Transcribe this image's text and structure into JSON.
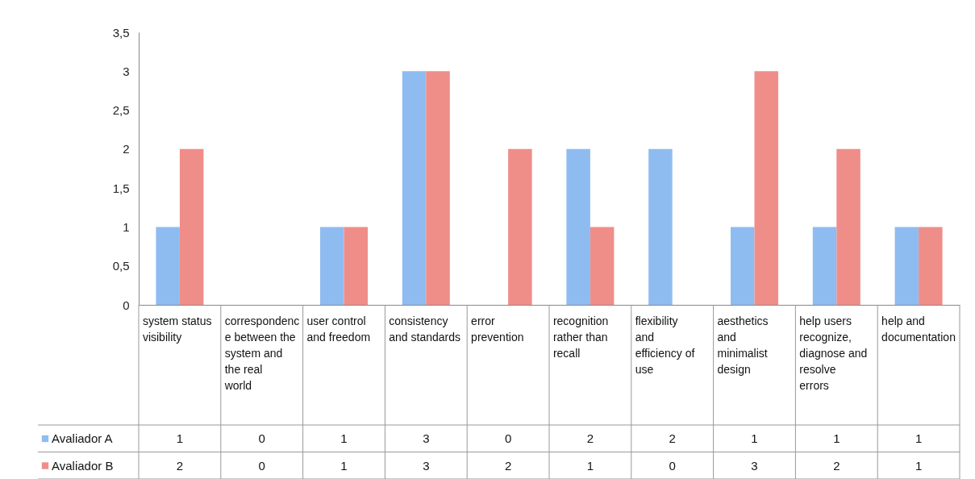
{
  "chart_data": {
    "type": "bar",
    "categories": [
      "system status visibility",
      "correspondence between the system and the real world",
      "user control and freedom",
      "consistency and standards",
      "error prevention",
      "recognition rather than recall",
      "flexibility and efficiency of use",
      "aesthetics and minimalist design",
      "help users recognize, diagnose and resolve errors",
      "help and documentation"
    ],
    "series": [
      {
        "name": "Avaliador A",
        "color": "#8fbcf0",
        "values": [
          1,
          0,
          1,
          3,
          0,
          2,
          2,
          1,
          1,
          1
        ]
      },
      {
        "name": "Avaliador B",
        "color": "#ef8e89",
        "values": [
          2,
          0,
          1,
          3,
          2,
          1,
          0,
          3,
          2,
          1
        ]
      }
    ],
    "ylim": [
      0,
      3.5
    ],
    "yticks": [
      0,
      {
        "value": 0.5,
        "label": "0,5"
      },
      1,
      {
        "value": 1.5,
        "label": "1,5"
      },
      2,
      {
        "value": 2.5,
        "label": "2,5"
      },
      3,
      {
        "value": 3.5,
        "label": "3,5"
      }
    ],
    "data_labels": true,
    "legend": "bottom",
    "grid": false
  }
}
